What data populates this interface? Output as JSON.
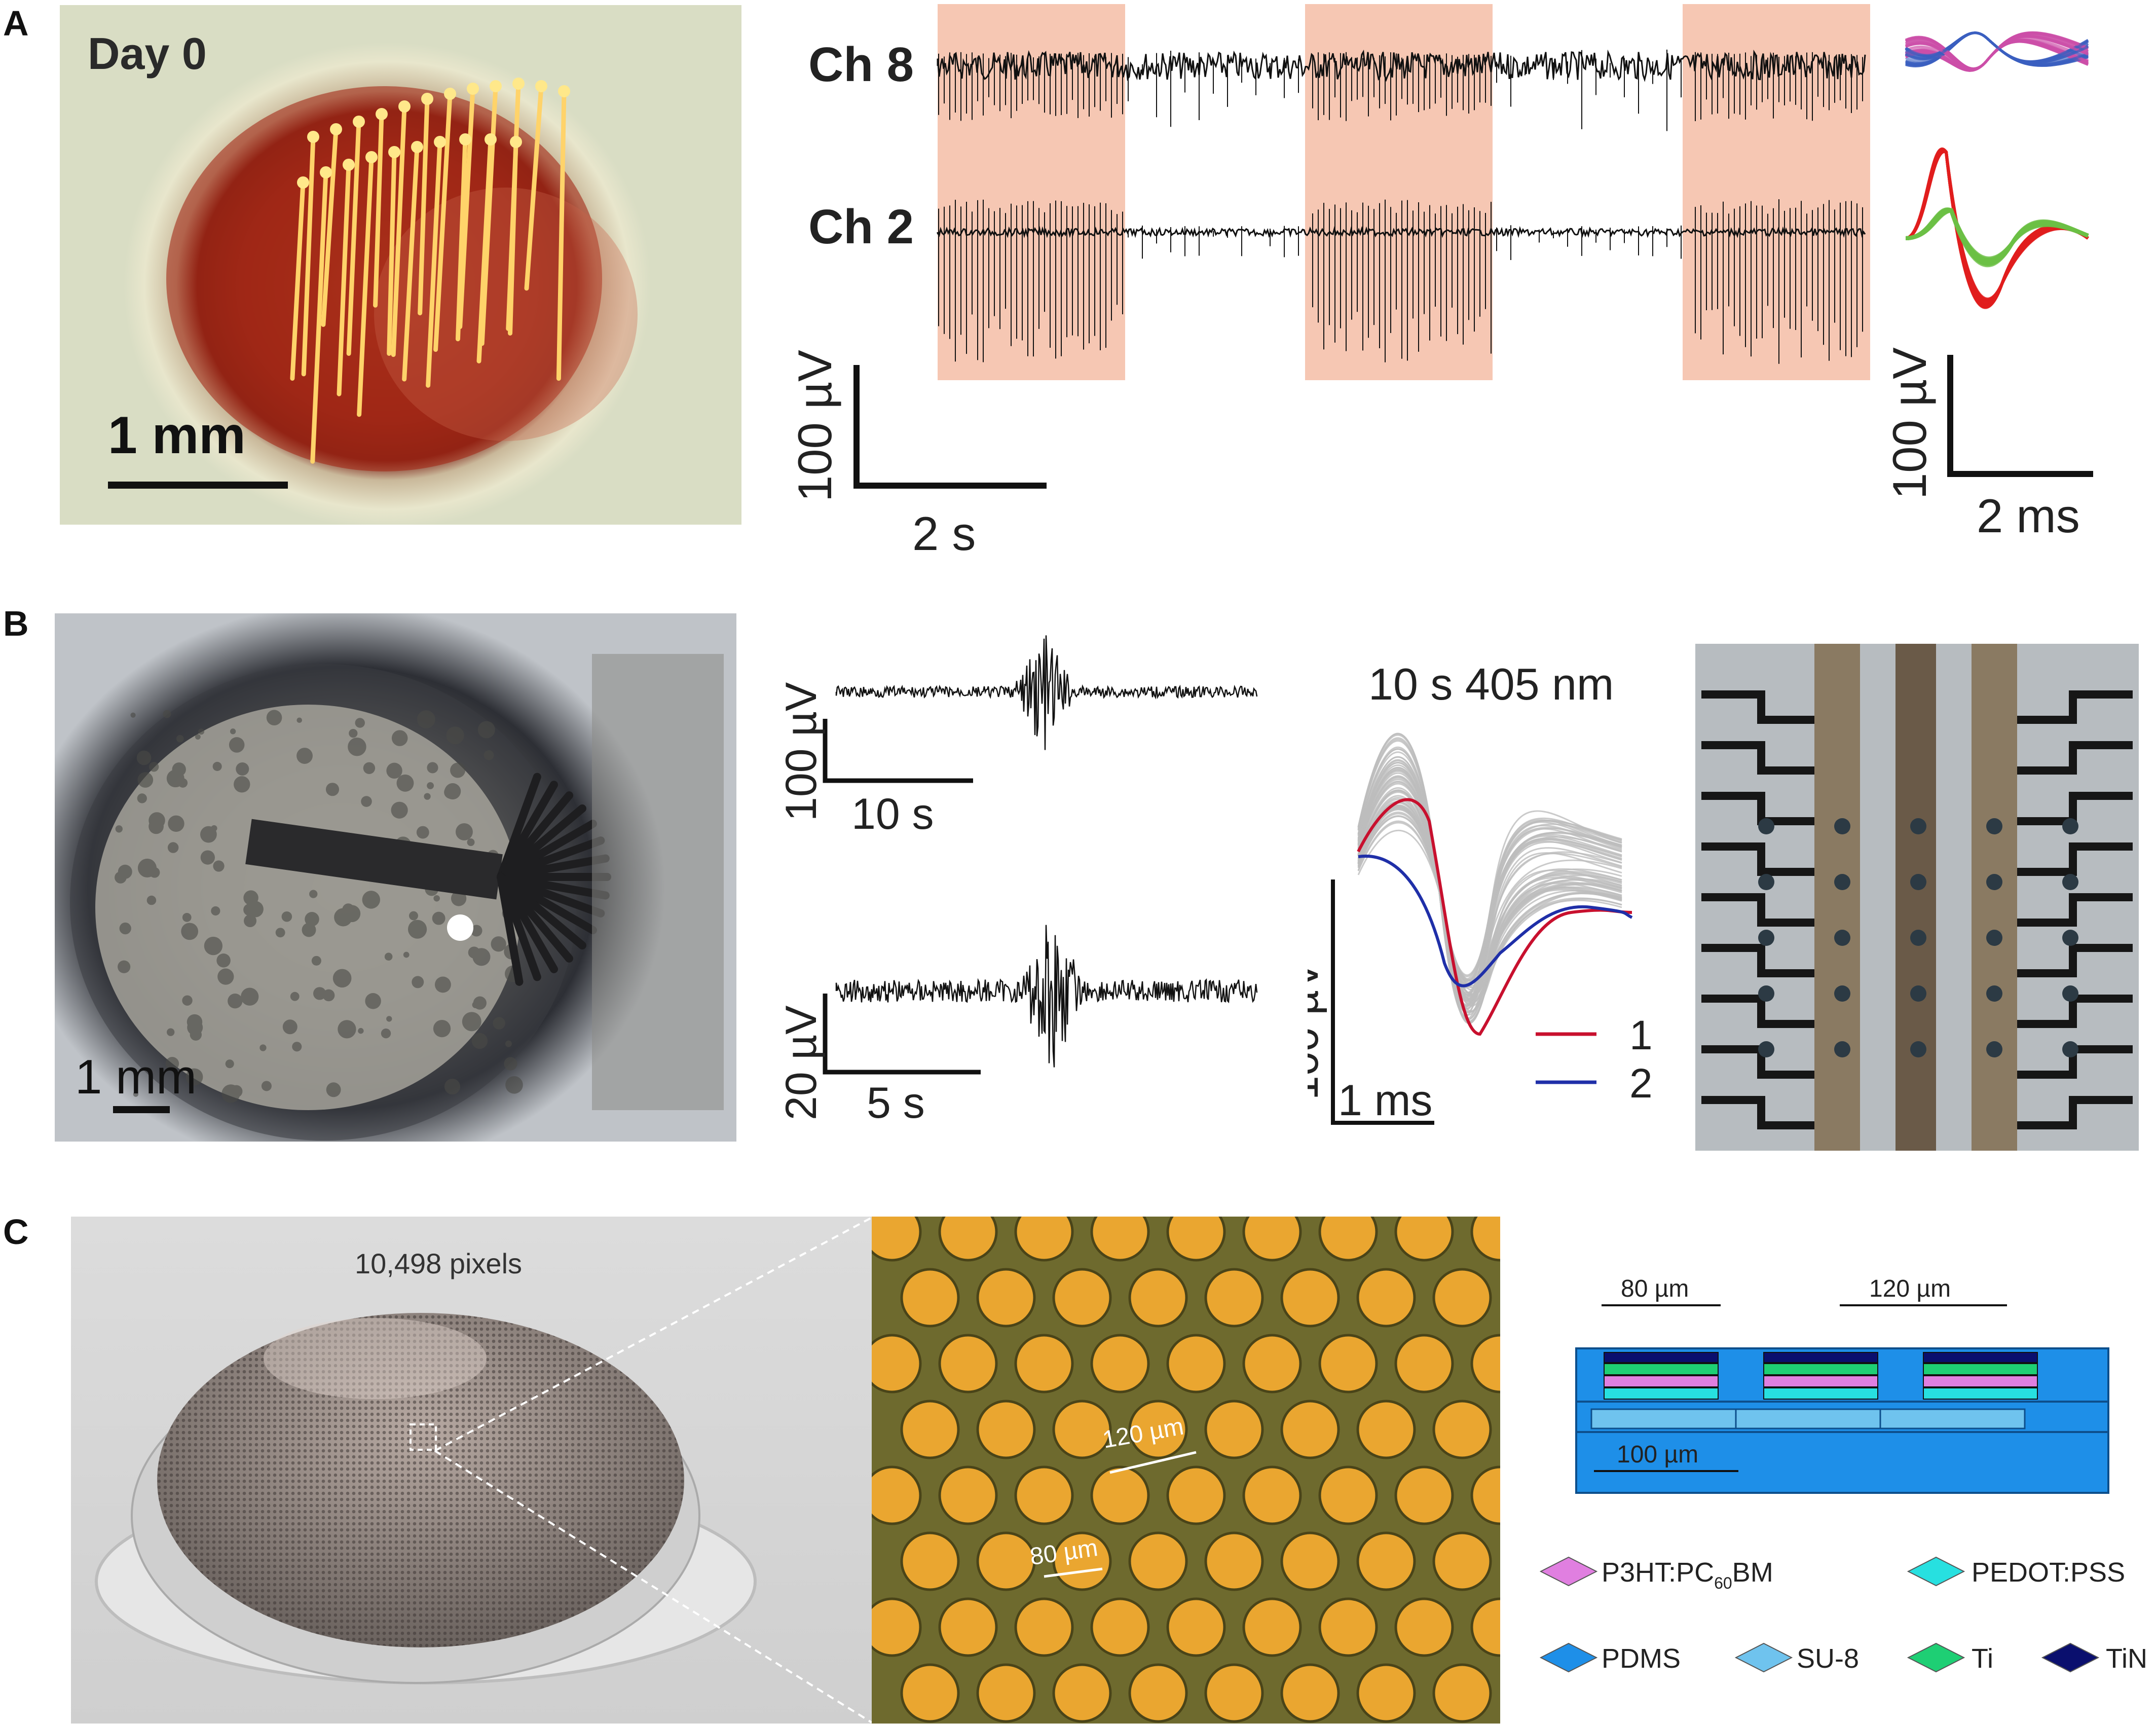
{
  "panel_letters": {
    "a": "A",
    "b": "B",
    "c": "C"
  },
  "panel_a": {
    "photo_label": "Day 0",
    "photo_scale": "1 mm",
    "channels": [
      "Ch 8",
      "Ch 2"
    ],
    "trace_scale_y": "100 µV",
    "trace_scale_x": "2 s",
    "spike_scale_y": "100 µV",
    "spike_scale_x": "2 ms",
    "colors": {
      "stim_band": "#f6c7b3",
      "unit_blue": "#3b5fc0",
      "unit_magenta": "#cc4fa8",
      "unit_red": "#e01e1e",
      "unit_green": "#6cbf45"
    }
  },
  "panel_b": {
    "photo_scale": "1 mm",
    "trace1_scale_y": "100 µV",
    "trace1_scale_x": "10 s",
    "trace2_scale_y": "20 µV",
    "trace2_scale_x": "5 s",
    "waveform_title": "10 s 405 nm",
    "waveform_scale_y": "100 µV",
    "waveform_scale_x": "1 ms",
    "legend": [
      "1",
      "2"
    ],
    "colors": {
      "unit1": "#c8102e",
      "unit2": "#1f2fa8",
      "overlay": "#bdbdbd"
    }
  },
  "panel_c": {
    "device_label": "10,498 pixels",
    "micro_label_1": "120 µm",
    "micro_label_2": "80 µm",
    "schematic_dim_1": "80 µm",
    "schematic_dim_2": "120 µm",
    "schematic_dim_3": "100 µm",
    "legend": {
      "l1_main": "P3HT:PC",
      "l1_sub": "60",
      "l1_tail": "BM",
      "l2": "PEDOT:PSS",
      "l3": "PDMS",
      "l4": "SU-8",
      "l5": "Ti",
      "l6": "TiN"
    },
    "colors": {
      "pdms": "#1e8fe8",
      "su8": "#6fc3ee",
      "ti": "#1ecf74",
      "tin": "#0a0f6e",
      "p3ht": "#e07fe0",
      "pedot": "#27e0e0"
    }
  }
}
